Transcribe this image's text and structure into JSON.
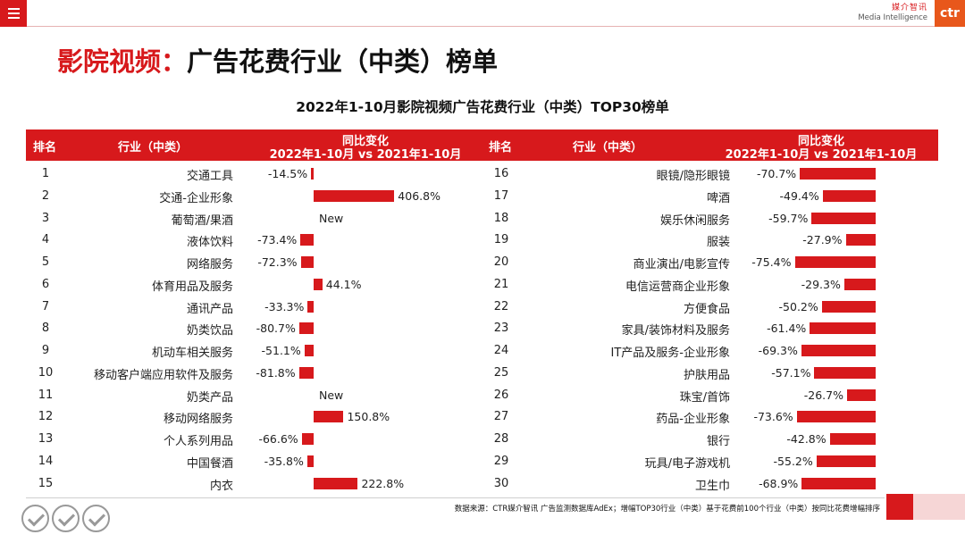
{
  "header": {
    "brand_cn": "媒介智讯",
    "brand_en": "Media Intelligence",
    "logo_text": "ctr"
  },
  "page_title": {
    "prefix": "影院视频：",
    "main": "广告花费行业（中类）榜单"
  },
  "table": {
    "title": "2022年1-10月影院视频广告花费行业（中类）TOP30榜单",
    "col_rank": "排名",
    "col_industry": "行业（中类）",
    "col_change_line1": "同比变化",
    "col_change_line2": "2022年1-10月 vs 2021年1-10月",
    "new_label": "New"
  },
  "left_rows": [
    {
      "rank": "1",
      "industry": "交通工具",
      "change": -14.5,
      "label": "-14.5%"
    },
    {
      "rank": "2",
      "industry": "交通-企业形象",
      "change": 406.8,
      "label": "406.8%"
    },
    {
      "rank": "3",
      "industry": "葡萄酒/果酒",
      "change": null,
      "label": "New"
    },
    {
      "rank": "4",
      "industry": "液体饮料",
      "change": -73.4,
      "label": "-73.4%"
    },
    {
      "rank": "5",
      "industry": "网络服务",
      "change": -72.3,
      "label": "-72.3%"
    },
    {
      "rank": "6",
      "industry": "体育用品及服务",
      "change": 44.1,
      "label": "44.1%"
    },
    {
      "rank": "7",
      "industry": "通讯产品",
      "change": -33.3,
      "label": "-33.3%"
    },
    {
      "rank": "8",
      "industry": "奶类饮品",
      "change": -80.7,
      "label": "-80.7%"
    },
    {
      "rank": "9",
      "industry": "机动车相关服务",
      "change": -51.1,
      "label": "-51.1%"
    },
    {
      "rank": "10",
      "industry": "移动客户端应用软件及服务",
      "change": -81.8,
      "label": "-81.8%"
    },
    {
      "rank": "11",
      "industry": "奶类产品",
      "change": null,
      "label": "New"
    },
    {
      "rank": "12",
      "industry": "移动网络服务",
      "change": 150.8,
      "label": "150.8%"
    },
    {
      "rank": "13",
      "industry": "个人系列用品",
      "change": -66.6,
      "label": "-66.6%"
    },
    {
      "rank": "14",
      "industry": "中国餐酒",
      "change": -35.8,
      "label": "-35.8%"
    },
    {
      "rank": "15",
      "industry": "内衣",
      "change": 222.8,
      "label": "222.8%"
    }
  ],
  "right_rows": [
    {
      "rank": "16",
      "industry": "眼镜/隐形眼镜",
      "change": -70.7,
      "label": "-70.7%"
    },
    {
      "rank": "17",
      "industry": "啤酒",
      "change": -49.4,
      "label": "-49.4%"
    },
    {
      "rank": "18",
      "industry": "娱乐休闲服务",
      "change": -59.7,
      "label": "-59.7%"
    },
    {
      "rank": "19",
      "industry": "服装",
      "change": -27.9,
      "label": "-27.9%"
    },
    {
      "rank": "20",
      "industry": "商业演出/电影宣传",
      "change": -75.4,
      "label": "-75.4%"
    },
    {
      "rank": "21",
      "industry": "电信运营商企业形象",
      "change": -29.3,
      "label": "-29.3%"
    },
    {
      "rank": "22",
      "industry": "方便食品",
      "change": -50.2,
      "label": "-50.2%"
    },
    {
      "rank": "23",
      "industry": "家具/装饰材料及服务",
      "change": -61.4,
      "label": "-61.4%"
    },
    {
      "rank": "24",
      "industry": "IT产品及服务-企业形象",
      "change": -69.3,
      "label": "-69.3%"
    },
    {
      "rank": "25",
      "industry": "护肤用品",
      "change": -57.1,
      "label": "-57.1%"
    },
    {
      "rank": "26",
      "industry": "珠宝/首饰",
      "change": -26.7,
      "label": "-26.7%"
    },
    {
      "rank": "27",
      "industry": "药品-企业形象",
      "change": -73.6,
      "label": "-73.6%"
    },
    {
      "rank": "28",
      "industry": "银行",
      "change": -42.8,
      "label": "-42.8%"
    },
    {
      "rank": "29",
      "industry": "玩具/电子游戏机",
      "change": -55.2,
      "label": "-55.2%"
    },
    {
      "rank": "30",
      "industry": "卫生巾",
      "change": -68.9,
      "label": "-68.9%"
    }
  ],
  "footer": {
    "source": "数据来源：CTR媒介智讯 广告监测数据库AdEx；增幅TOP30行业（中类）基于花费前100个行业（中类）按同比花费增幅排序"
  },
  "colors": {
    "accent": "#d7191c",
    "logo": "#e8571b"
  }
}
